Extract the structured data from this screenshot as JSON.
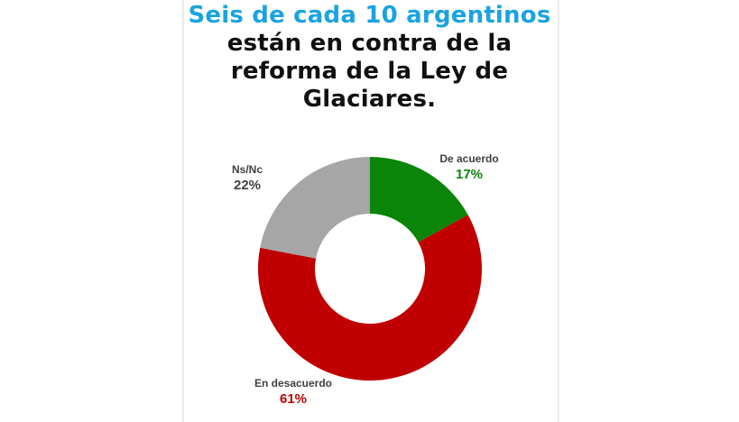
{
  "headline": {
    "line1": "Seis de cada 10 argentinos",
    "line2": "están en contra de la",
    "line3": "reforma de la Ley de",
    "line4": "Glaciares."
  },
  "labels": {
    "acuerdo": {
      "name": "De acuerdo",
      "value": "17%"
    },
    "desacuerdo": {
      "name": "En desacuerdo",
      "value": "61%"
    },
    "nsnc": {
      "name": "Ns/Nc",
      "value": "22%"
    }
  },
  "colors": {
    "acuerdo": "#0a850a",
    "desacuerdo": "#c00000",
    "nsnc": "#a6a6a6",
    "title_accent": "#1aa3e0"
  },
  "chart_data": {
    "type": "pie",
    "subtype": "donut",
    "title": "Seis de cada 10 argentinos están en contra de la reforma de la Ley de Glaciares.",
    "categories": [
      "De acuerdo",
      "En desacuerdo",
      "Ns/Nc"
    ],
    "values": [
      17,
      61,
      22
    ],
    "unit": "%",
    "colors": [
      "#0a850a",
      "#c00000",
      "#a6a6a6"
    ],
    "start_angle": "12 o'clock, clockwise",
    "legend": "data labels outside slices"
  }
}
